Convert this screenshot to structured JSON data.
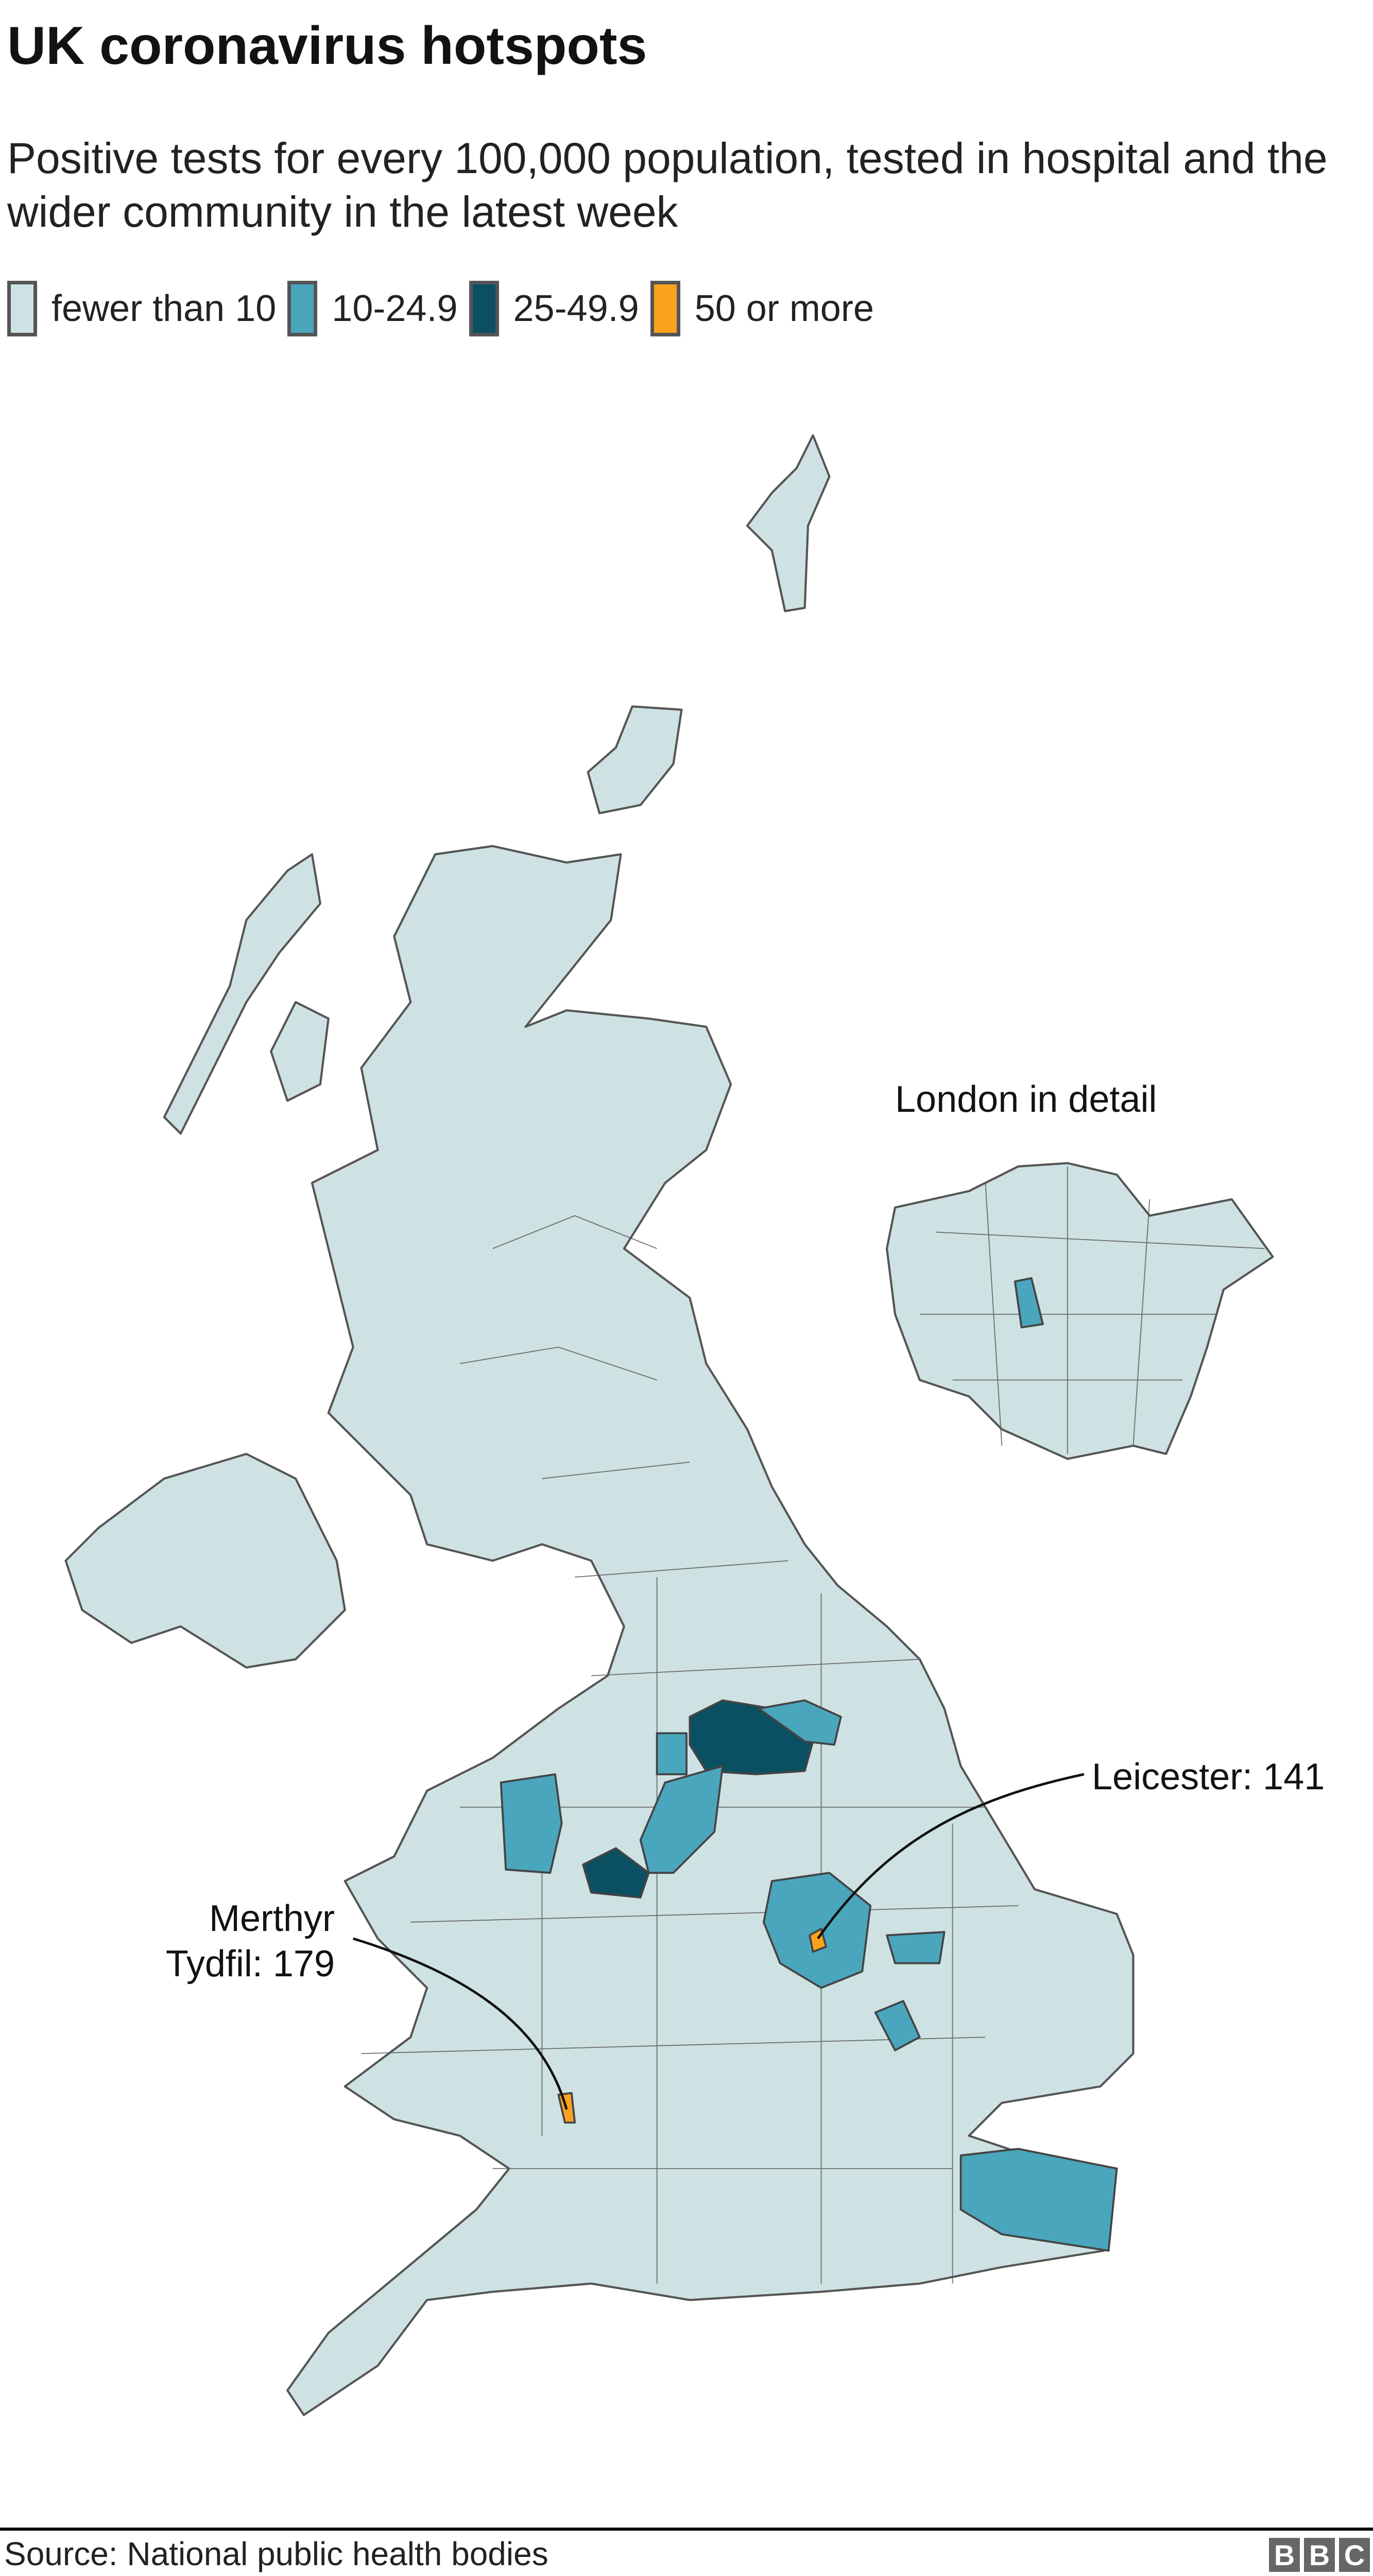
{
  "title": "UK coronavirus hotspots",
  "subtitle": "Positive tests for every 100,000 population, tested in hospital and the wider community in the latest week",
  "legend": [
    {
      "label": "fewer than 10",
      "color": "#cfe2e3"
    },
    {
      "label": "10-24.9",
      "color": "#4aa6bc"
    },
    {
      "label": "25-49.9",
      "color": "#0b4f62"
    },
    {
      "label": "50 or more",
      "color": "#fba31f"
    }
  ],
  "inset_label": "London in detail",
  "annotations": {
    "leicester": "Leicester: 141",
    "merthyr_line1": "Merthyr",
    "merthyr_line2": "Tydfil: 179"
  },
  "source": "Source: National public health bodies",
  "logo": "BBC"
}
